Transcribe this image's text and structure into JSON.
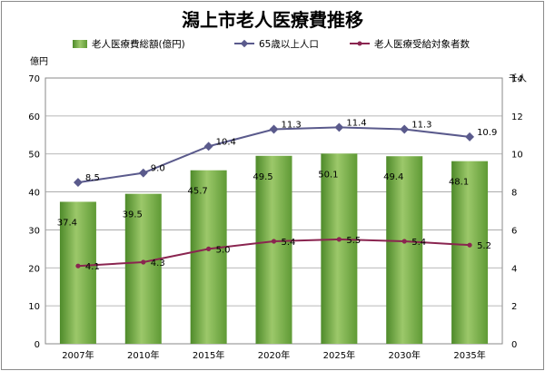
{
  "chart_data": {
    "type": "bar",
    "title": "潟上市老人医療費推移",
    "categories": [
      "2007年",
      "2010年",
      "2015年",
      "2020年",
      "2025年",
      "2030年",
      "2035年"
    ],
    "series": [
      {
        "name": "老人医療費総額(億円)",
        "kind": "bar",
        "axis": "left",
        "values": [
          37.4,
          39.5,
          45.7,
          49.5,
          50.1,
          49.4,
          48.1
        ],
        "color": "#7fae4a"
      },
      {
        "name": "65歳以上人口",
        "kind": "line",
        "axis": "right",
        "values": [
          8.5,
          9.0,
          10.4,
          11.3,
          11.4,
          11.3,
          10.9
        ],
        "color": "#5a5a8c"
      },
      {
        "name": "老人医療受給対象者数",
        "kind": "line",
        "axis": "right",
        "values": [
          4.1,
          4.3,
          5.0,
          5.4,
          5.5,
          5.4,
          5.2
        ],
        "color": "#8a2550"
      }
    ],
    "y_left": {
      "unit": "億円",
      "min": 0,
      "max": 70,
      "step": 10,
      "ticks": [
        "0",
        "10",
        "20",
        "30",
        "40",
        "50",
        "60",
        "70"
      ]
    },
    "y_right": {
      "unit": "千人",
      "min": 0,
      "max": 14,
      "step": 2,
      "ticks": [
        "0",
        "2",
        "4",
        "6",
        "8",
        "10",
        "12",
        "14"
      ]
    },
    "grid": true,
    "legend_position": "top"
  }
}
